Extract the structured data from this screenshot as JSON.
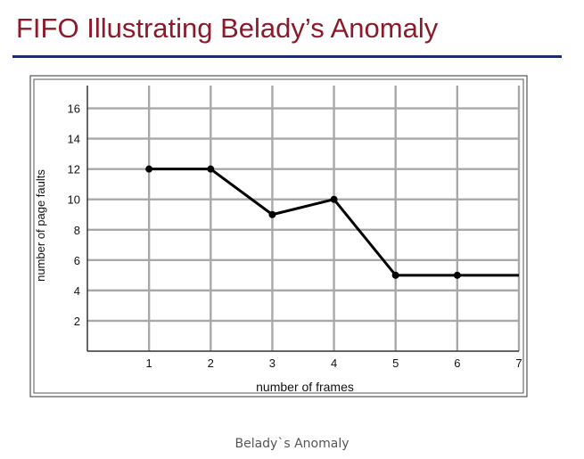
{
  "slide": {
    "title": "FIFO Illustrating Belady’s Anomaly",
    "caption": "Belady`s Anomaly"
  },
  "colors": {
    "title": "#8b1a2b",
    "rule": "#1f2a6b",
    "grid": "#a8a8a8",
    "line": "#000000"
  },
  "chart_data": {
    "type": "line",
    "title": "",
    "xlabel": "number of frames",
    "ylabel": "number of page faults",
    "xlim": [
      0,
      7
    ],
    "ylim": [
      0,
      17.5
    ],
    "x_ticks": [
      1,
      2,
      3,
      4,
      5,
      6,
      7
    ],
    "x_tick_labels": [
      "1",
      "2",
      "3",
      "4",
      "5",
      "6",
      "7"
    ],
    "y_ticks": [
      2,
      4,
      6,
      8,
      10,
      12,
      14,
      16
    ],
    "y_tick_labels": [
      "2",
      "4",
      "6",
      "8",
      "10",
      "12",
      "14",
      "16"
    ],
    "grid": true,
    "series": [
      {
        "x": [
          1,
          2,
          3,
          4,
          5,
          6,
          7
        ],
        "y": [
          12,
          12,
          9,
          10,
          5,
          5,
          5
        ],
        "markers_at": [
          1,
          2,
          3,
          4,
          5,
          6
        ]
      }
    ]
  }
}
